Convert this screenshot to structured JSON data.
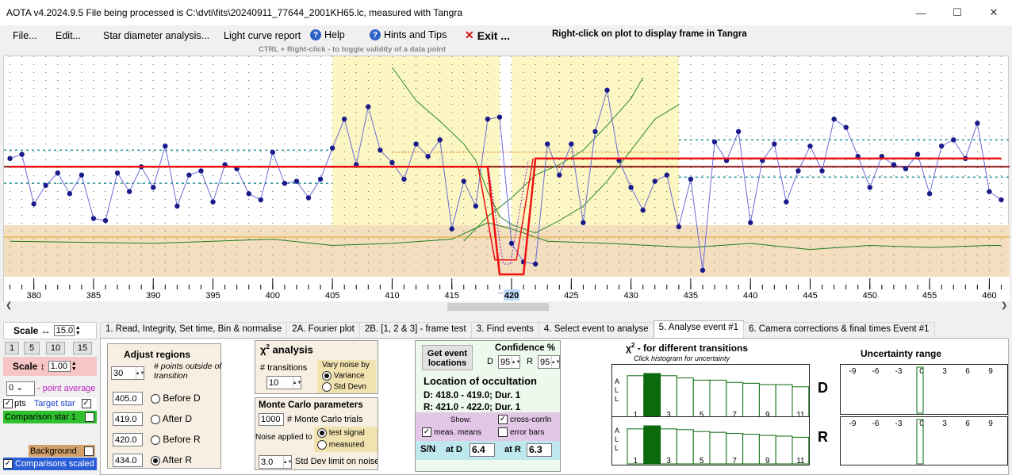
{
  "window": {
    "title": "AOTA v4.2024.9.5    File being processed is C:\\dvti\\fits\\20240911_77644_2001KH65.lc, measured with Tangra"
  },
  "menu": {
    "file": "File...",
    "edit": "Edit...",
    "star_diameter": "Star diameter analysis...",
    "light_curve": "Light curve report",
    "help": "Help",
    "hints": "Hints and Tips",
    "exit": "Exit ..."
  },
  "hints": {
    "right_click": "Right-click on plot to display frame in Tangra",
    "ctrl_right_click": "CTRL + Right-click  -  to toggle validity of a data point"
  },
  "plot": {
    "x_ticks": [
      "380",
      "385",
      "390",
      "395",
      "400",
      "405",
      "410",
      "415",
      "420",
      "425",
      "430",
      "435",
      "440",
      "445",
      "450",
      "455",
      "460"
    ],
    "current_frame": "420",
    "cursor_marker": "_"
  },
  "chart_data": {
    "type": "line",
    "x_range": [
      377.5,
      461.7
    ],
    "series": [
      {
        "name": "Target star",
        "x": [
          378,
          379,
          380,
          381,
          382,
          383,
          384,
          385,
          386,
          387,
          388,
          389,
          390,
          391,
          392,
          393,
          394,
          395,
          396,
          397,
          398,
          399,
          400,
          401,
          402,
          403,
          404,
          405,
          406,
          407,
          408,
          409,
          410,
          411,
          412,
          413,
          414,
          415,
          416,
          417,
          418,
          419,
          420,
          421,
          422,
          423,
          424,
          425,
          426,
          427,
          428,
          429,
          430,
          431,
          432,
          433,
          434,
          435,
          436,
          437,
          438,
          439,
          440,
          441,
          442,
          443,
          444,
          445,
          446,
          447,
          448,
          449,
          450,
          451,
          452,
          453,
          454,
          455,
          456,
          457,
          458,
          459,
          460,
          461
        ],
        "y": [
          0.56,
          0.58,
          0.34,
          0.43,
          0.49,
          0.39,
          0.48,
          0.27,
          0.26,
          0.49,
          0.4,
          0.52,
          0.42,
          0.62,
          0.33,
          0.48,
          0.5,
          0.35,
          0.53,
          0.51,
          0.39,
          0.36,
          0.59,
          0.44,
          0.45,
          0.37,
          0.46,
          0.61,
          0.75,
          0.53,
          0.81,
          0.6,
          0.54,
          0.46,
          0.63,
          0.57,
          0.65,
          0.22,
          0.45,
          0.33,
          0.75,
          0.76,
          0.15,
          0.06,
          0.05,
          0.63,
          0.48,
          0.63,
          0.25,
          0.69,
          0.89,
          0.55,
          0.42,
          0.31,
          0.45,
          0.48,
          0.23,
          0.46,
          0.02,
          0.64,
          0.55,
          0.69,
          0.25,
          0.55,
          0.63,
          0.35,
          0.5,
          0.62,
          0.5,
          0.75,
          0.71,
          0.57,
          0.42,
          0.57,
          0.53,
          0.51,
          0.58,
          0.39,
          0.62,
          0.65,
          0.56,
          0.73,
          0.4,
          0.36
        ]
      },
      {
        "name": "Model",
        "x": [
          378,
          418,
          419,
          421,
          422,
          461
        ],
        "y": [
          0.52,
          0.52,
          0.0,
          0.0,
          0.56,
          0.56
        ]
      },
      {
        "name": "Comparison star 1",
        "x": [
          378,
          390,
          400,
          405,
          410,
          415,
          418,
          420,
          423,
          428,
          435,
          440,
          445,
          450,
          455,
          460,
          461
        ],
        "y": [
          0.16,
          0.15,
          0.17,
          0.14,
          0.15,
          0.17,
          0.25,
          0.22,
          0.16,
          0.15,
          0.13,
          0.15,
          0.12,
          0.14,
          0.13,
          0.14,
          0.14
        ]
      }
    ],
    "baseline": 0.52,
    "regions": {
      "before_d": [
        405,
        419
      ],
      "after_r": [
        420,
        434
      ]
    }
  },
  "left": {
    "scale_h_label": "Scale ↔",
    "scale_h": "15.0",
    "zoom_buttons": [
      "1",
      "5",
      "10",
      "15"
    ],
    "scale_v_label": "Scale ↕",
    "scale_v": "1.00",
    "point_avg": "0",
    "point_avg_label": "- point average",
    "pts_label": "pts",
    "target_label": "Target star",
    "comparison_label": "Comparison star 1",
    "background_label": "Background",
    "comparisons_scaled": "Comparisons scaled"
  },
  "tabs": [
    "1. Read, Integrity, Set time, Bin & normalise",
    "2A. Fourier plot",
    "2B. [1, 2 & 3] - frame test",
    "3. Find events",
    "4. Select event to analyse",
    "5. Analyse event #1",
    "6. Camera corrections & final times Event #1"
  ],
  "adjust": {
    "title": "Adjust regions",
    "points": "30",
    "points_label": "# points outside of transition",
    "v1": "405.0",
    "l1": "Before D",
    "v2": "419.0",
    "l2": "After D",
    "v3": "420.0",
    "l3": "Before R",
    "v4": "434.0",
    "l4": "After R"
  },
  "chi": {
    "title": "analysis",
    "transitions_label": "# transitions",
    "transitions": "10",
    "vary_label": "Vary noise by",
    "variance": "Variance",
    "std": "Std Devn"
  },
  "mc": {
    "title": "Monte Carlo parameters",
    "trials": "1000",
    "trials_label": "# Monte Carlo trials",
    "noise_label": "Noise applied to",
    "test": "test signal",
    "measured": "measured",
    "std_limit": "3.0",
    "std_limit_label": "Std Dev limit on noise"
  },
  "loc": {
    "get_btn": "Get event locations",
    "conf_title": "Confidence %",
    "d_label": "D",
    "d_val": "95",
    "r_label": "R",
    "r_val": "95",
    "title": "Location of occultation",
    "d_text": "D: 418.0 - 419.0; Dur. 1",
    "r_text": "R: 421.0 - 422.0; Dur. 1",
    "show": "Show:",
    "means": "meas. means",
    "cross": "cross-corrln",
    "error": "error bars",
    "sn_label": "S/N",
    "at_d": "at D",
    "sn_d": "6.4",
    "at_r": "at R",
    "sn_r": "6.3"
  },
  "hist": {
    "title": "- for different transitions",
    "subtitle": "Click histogram for uncertainty",
    "all": "ALL",
    "ticks": [
      "1",
      "3",
      "5",
      "7",
      "9",
      "11"
    ],
    "d_label": "D",
    "r_label": "R",
    "unc_title": "Uncertainty range",
    "unc_ticks": [
      "-9",
      "-6",
      "-3",
      "0",
      "3",
      "6",
      "9"
    ],
    "d_bars": [
      0.95,
      1.0,
      0.95,
      0.9,
      0.85,
      0.85,
      0.8,
      0.78,
      0.75,
      0.75,
      0.7
    ],
    "r_bars": [
      0.92,
      1.0,
      0.92,
      0.9,
      0.85,
      0.83,
      0.8,
      0.78,
      0.75,
      0.73,
      0.7
    ]
  }
}
